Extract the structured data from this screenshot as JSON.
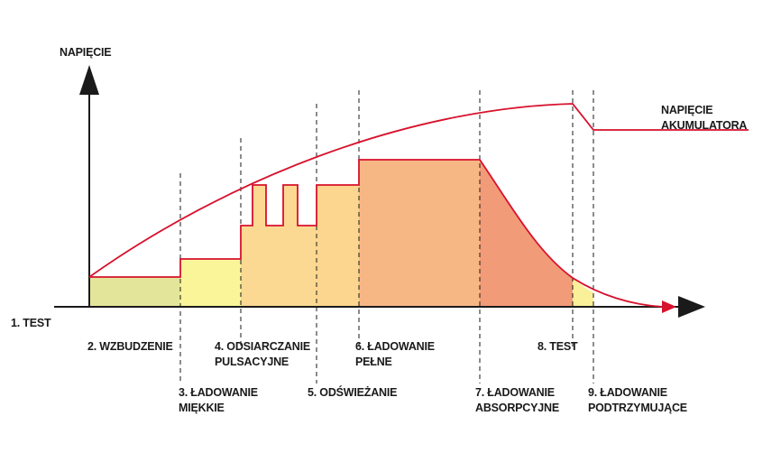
{
  "axis": {
    "y_label": "NAPIĘCIE",
    "battery_label_line1": "NAPIĘCIE",
    "battery_label_line2": "AKUMULATORA"
  },
  "stages": [
    {
      "line1": "1. TEST",
      "line2": ""
    },
    {
      "line1": "2. WZBUDZENIE",
      "line2": ""
    },
    {
      "line1": "3. ŁADOWANIE",
      "line2": "MIĘKKIE"
    },
    {
      "line1": "4. ODSIARCZANIE",
      "line2": "PULSACYJNE"
    },
    {
      "line1": "5. ODŚWIEŻANIE",
      "line2": ""
    },
    {
      "line1": "6. ŁADOWANIE",
      "line2": "PEŁNE"
    },
    {
      "line1": "7. ŁADOWANIE",
      "line2": "ABSORPCYJNE"
    },
    {
      "line1": "8. TEST",
      "line2": ""
    },
    {
      "line1": "9. ŁADOWANIE",
      "line2": "PODTRZYMUJĄCE"
    }
  ],
  "colors": {
    "curve": "#d8112c",
    "axis": "#1a1a1a",
    "stage_fills": [
      "#e3e69a",
      "#fbf59a",
      "#fcd993",
      "#fcd58f",
      "#f7b785",
      "#f29b78",
      "#fbf09a"
    ]
  }
}
